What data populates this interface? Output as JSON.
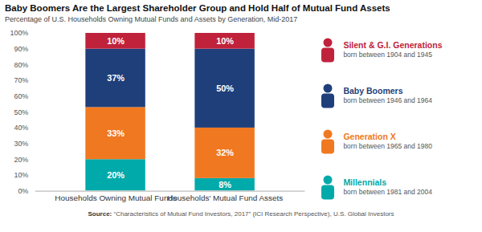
{
  "chart_data": {
    "type": "bar",
    "stacked": true,
    "title": "Baby Boomers Are the Largest Shareholder Group and Hold Half of Mutual Fund Assets",
    "subtitle": "Percentage of U.S. Households Owning Mutual Funds and Assets by Generation, Mid-2017",
    "source_label": "Source:",
    "source": " “Characteristics of Mutual Fund Investors, 2017” (ICI Research Perspective), U.S. Global Investors",
    "categories": [
      "Households Owning Mutual Funds",
      "Households' Mutual Fund Assets"
    ],
    "series": [
      {
        "name": "Millennials",
        "subtitle": "born between 1981 and 2004",
        "color": "#00AAAA",
        "values": [
          20,
          8
        ],
        "value_labels": [
          "20%",
          "8%"
        ]
      },
      {
        "name": "Generation X",
        "subtitle": "born between 1965 and 1980",
        "color": "#F07820",
        "values": [
          33,
          32
        ],
        "value_labels": [
          "33%",
          "32%"
        ]
      },
      {
        "name": "Baby Boomers",
        "subtitle": "born between 1946 and 1964",
        "color": "#1F3F7A",
        "values": [
          37,
          50
        ],
        "value_labels": [
          "37%",
          "50%"
        ]
      },
      {
        "name": "Silent & G.I. Generations",
        "subtitle": "born between 1904 and 1945",
        "color": "#C0223B",
        "values": [
          10,
          10
        ],
        "value_labels": [
          "10%",
          "10%"
        ]
      }
    ],
    "ylim": [
      0,
      100
    ],
    "yticks": [
      {
        "value": 0,
        "label": "0%"
      },
      {
        "value": 10,
        "label": "10%"
      },
      {
        "value": 20,
        "label": "20%"
      },
      {
        "value": 30,
        "label": "30%"
      },
      {
        "value": 40,
        "label": "40%"
      },
      {
        "value": 50,
        "label": "50%"
      },
      {
        "value": 60,
        "label": "60%"
      },
      {
        "value": 70,
        "label": "70%"
      },
      {
        "value": 80,
        "label": "80%"
      },
      {
        "value": 90,
        "label": "90%"
      },
      {
        "value": 100,
        "label": "100%"
      }
    ],
    "grid": false,
    "data_labels": true,
    "legend": "right"
  }
}
